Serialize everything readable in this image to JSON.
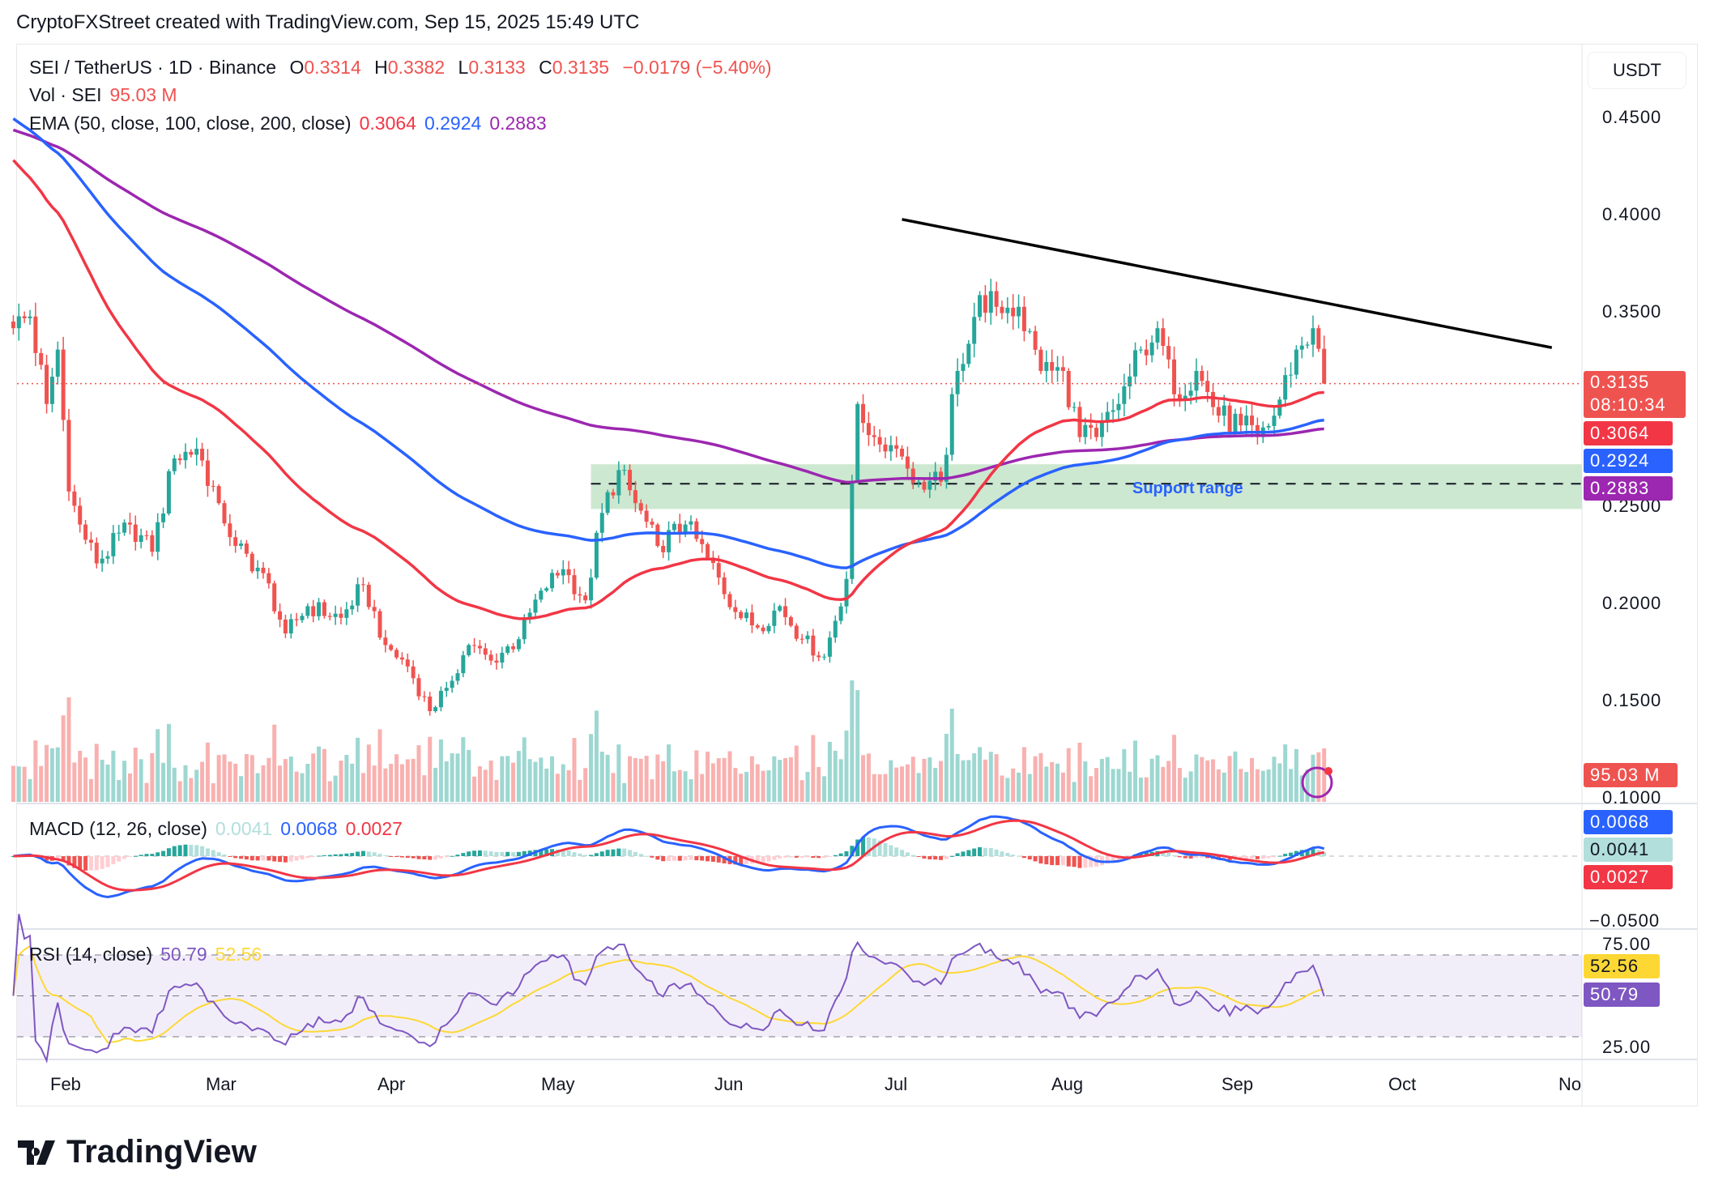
{
  "credit": "CryptoFXStreet created with TradingView.com, Sep 15, 2025 15:49 UTC",
  "legend": {
    "symbol": "SEI / TetherUS · 1D · Binance",
    "o_label": "O",
    "o": "0.3314",
    "h_label": "H",
    "h": "0.3382",
    "l_label": "L",
    "l": "0.3133",
    "c_label": "C",
    "c": "0.3135",
    "change": "−0.0179 (−5.40%)",
    "vol_label": "Vol · SEI",
    "vol": "95.03 M",
    "ema_label": "EMA (50, close, 100, close, 200, close)",
    "ema50": "0.3064",
    "ema100": "0.2924",
    "ema200": "0.2883",
    "macd_label": "MACD (12, 26, close)",
    "macd_hist": "0.0041",
    "macd_line": "0.0068",
    "macd_signal": "0.0027",
    "rsi_label": "RSI (14, close)",
    "rsi": "50.79",
    "rsi_ma": "52.56"
  },
  "axis": {
    "currency": "USDT",
    "price_ticks": [
      "0.4500",
      "0.4000",
      "0.3500",
      "0.2500",
      "0.2000",
      "0.1500",
      "0.1000"
    ],
    "macd_ticks": [
      "−0.0500"
    ],
    "rsi_ticks": [
      "75.00",
      "25.00"
    ],
    "time_ticks": [
      "Feb",
      "Mar",
      "Apr",
      "May",
      "Jun",
      "Jul",
      "Aug",
      "Sep",
      "Oct",
      "No"
    ]
  },
  "tags": {
    "last_price": "0.3135",
    "countdown": "08:10:34",
    "ema50": "0.3064",
    "ema100": "0.2924",
    "ema200": "0.2883",
    "vol": "95.03 M",
    "macd_line": "0.0068",
    "macd_hist": "0.0041",
    "macd_signal": "0.0027",
    "rsi_ma": "52.56",
    "rsi": "50.79"
  },
  "colors": {
    "up": "#26a69a",
    "down": "#ef5350",
    "ema50": "#f23645",
    "ema100": "#2962ff",
    "ema200": "#9c27b0",
    "rsi": "#7e57c2",
    "rsi_ma": "#fdd835",
    "support": "#cde8d0"
  },
  "chart_data": {
    "type": "candlestick",
    "symbol": "SEI/USDT",
    "interval": "1D",
    "ylim": [
      0.1,
      0.46
    ],
    "close_keypoints": [
      [
        "2025-01-22",
        0.342
      ],
      [
        "2025-01-25",
        0.348
      ],
      [
        "2025-01-28",
        0.303
      ],
      [
        "2025-01-30",
        0.331
      ],
      [
        "2025-02-01",
        0.258
      ],
      [
        "2025-02-03",
        0.241
      ],
      [
        "2025-02-06",
        0.221
      ],
      [
        "2025-02-12",
        0.241
      ],
      [
        "2025-02-16",
        0.227
      ],
      [
        "2025-02-20",
        0.275
      ],
      [
        "2025-02-24",
        0.28
      ],
      [
        "2025-02-28",
        0.252
      ],
      [
        "2025-03-03",
        0.23
      ],
      [
        "2025-03-08",
        0.216
      ],
      [
        "2025-03-12",
        0.185
      ],
      [
        "2025-03-16",
        0.199
      ],
      [
        "2025-03-22",
        0.193
      ],
      [
        "2025-03-26",
        0.21
      ],
      [
        "2025-03-30",
        0.179
      ],
      [
        "2025-04-03",
        0.168
      ],
      [
        "2025-04-07",
        0.145
      ],
      [
        "2025-04-10",
        0.157
      ],
      [
        "2025-04-14",
        0.179
      ],
      [
        "2025-04-18",
        0.171
      ],
      [
        "2025-04-23",
        0.182
      ],
      [
        "2025-04-27",
        0.207
      ],
      [
        "2025-05-01",
        0.218
      ],
      [
        "2025-05-05",
        0.202
      ],
      [
        "2025-05-08",
        0.247
      ],
      [
        "2025-05-11",
        0.269
      ],
      [
        "2025-05-14",
        0.252
      ],
      [
        "2025-05-18",
        0.23
      ],
      [
        "2025-05-23",
        0.241
      ],
      [
        "2025-05-27",
        0.224
      ],
      [
        "2025-06-01",
        0.196
      ],
      [
        "2025-06-05",
        0.188
      ],
      [
        "2025-06-09",
        0.199
      ],
      [
        "2025-06-13",
        0.182
      ],
      [
        "2025-06-17",
        0.173
      ],
      [
        "2025-06-21",
        0.213
      ],
      [
        "2025-06-23",
        0.303
      ],
      [
        "2025-06-26",
        0.286
      ],
      [
        "2025-06-30",
        0.28
      ],
      [
        "2025-07-04",
        0.263
      ],
      [
        "2025-07-08",
        0.263
      ],
      [
        "2025-07-11",
        0.32
      ],
      [
        "2025-07-15",
        0.359
      ],
      [
        "2025-07-18",
        0.353
      ],
      [
        "2025-07-22",
        0.353
      ],
      [
        "2025-07-26",
        0.32
      ],
      [
        "2025-07-30",
        0.32
      ],
      [
        "2025-08-02",
        0.286
      ],
      [
        "2025-08-05",
        0.286
      ],
      [
        "2025-08-09",
        0.303
      ],
      [
        "2025-08-13",
        0.331
      ],
      [
        "2025-08-16",
        0.342
      ],
      [
        "2025-08-19",
        0.308
      ],
      [
        "2025-08-23",
        0.32
      ],
      [
        "2025-08-27",
        0.297
      ],
      [
        "2025-08-31",
        0.292
      ],
      [
        "2025-09-03",
        0.286
      ],
      [
        "2025-09-06",
        0.297
      ],
      [
        "2025-09-10",
        0.331
      ],
      [
        "2025-09-13",
        0.342
      ],
      [
        "2025-09-14",
        0.3314
      ],
      [
        "2025-09-15",
        0.3135
      ]
    ],
    "last_ohlc": {
      "open": 0.3314,
      "high": 0.3382,
      "low": 0.3133,
      "close": 0.3135
    },
    "ema_start": {
      "ema50": 0.432,
      "ema100": 0.452,
      "ema200": 0.445
    },
    "trendline": [
      [
        "2025-07-01",
        0.398
      ],
      [
        "2025-10-26",
        0.332
      ]
    ],
    "support_range": {
      "label": "Support range",
      "from": "2025-05-06",
      "top": 0.272,
      "bottom": 0.249,
      "mid": 0.262
    },
    "rsi_bands": [
      25,
      50,
      75
    ]
  }
}
